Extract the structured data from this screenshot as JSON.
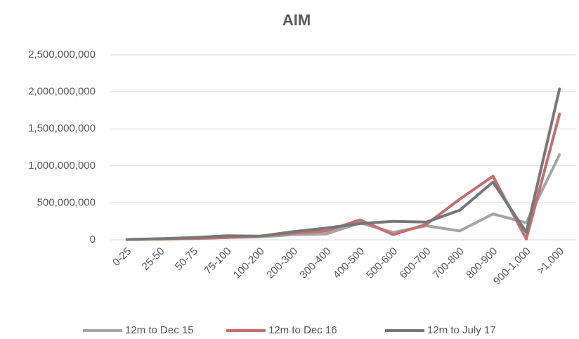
{
  "chart_data": {
    "type": "line",
    "title": "AIM",
    "categories": [
      "0-25",
      "25-50",
      "50-75",
      "75-100",
      "100-200",
      "200-300",
      "300-400",
      "400-500",
      "500-600",
      "600-700",
      "700-800",
      "800-900",
      "900-1,000",
      ">1,000"
    ],
    "series": [
      {
        "name": "12m to Dec 15",
        "color": "#a5a5a5",
        "values": [
          5000000,
          10000000,
          15000000,
          30000000,
          40000000,
          70000000,
          80000000,
          230000000,
          100000000,
          190000000,
          120000000,
          350000000,
          230000000,
          1150000000
        ]
      },
      {
        "name": "12m to Dec 16",
        "color": "#c4706d",
        "values": [
          5000000,
          10000000,
          20000000,
          30000000,
          50000000,
          90000000,
          120000000,
          270000000,
          70000000,
          210000000,
          550000000,
          860000000,
          10000000,
          1700000000
        ]
      },
      {
        "name": "12m to July 17",
        "color": "#777777",
        "values": [
          5000000,
          15000000,
          30000000,
          55000000,
          50000000,
          110000000,
          160000000,
          220000000,
          250000000,
          240000000,
          400000000,
          780000000,
          100000000,
          2040000000
        ]
      }
    ],
    "ylim": [
      0,
      2500000000
    ],
    "yticks": [
      0,
      {
        "value": 500000000,
        "label": "500,000,000"
      },
      {
        "value": 1000000000,
        "label": "1,000,000,000"
      },
      {
        "value": 1500000000,
        "label": "1,500,000,000"
      },
      {
        "value": 2000000000,
        "label": "2,000,000,000"
      },
      {
        "value": 2500000000,
        "label": "2,500,000,000"
      }
    ],
    "grid": true,
    "legend": "bottom"
  }
}
